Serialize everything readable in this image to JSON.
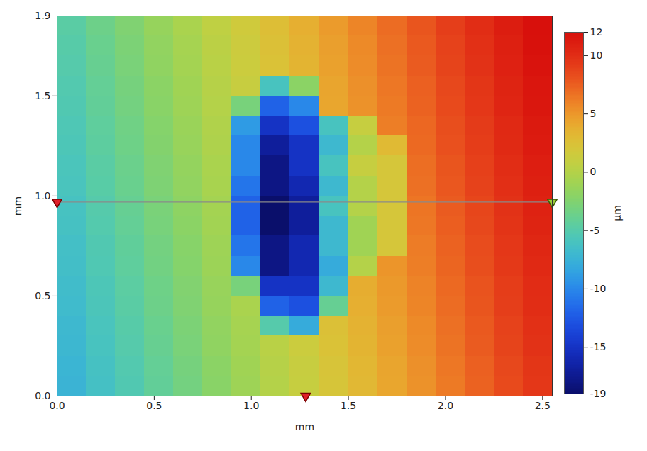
{
  "chart_data": {
    "type": "heatmap",
    "xlabel": "mm",
    "ylabel": "mm",
    "xlim": [
      0,
      2.55
    ],
    "ylim": [
      0,
      1.9
    ],
    "xticks": [
      {
        "value": 0,
        "label": "0.0"
      },
      0.5,
      {
        "value": 1,
        "label": "1.0"
      },
      1.5,
      {
        "value": 2,
        "label": "2.0"
      },
      2.5
    ],
    "yticks": [
      {
        "value": 0,
        "label": "0.0"
      },
      0.5,
      {
        "value": 1,
        "label": "1.0"
      },
      1.5,
      1.9
    ],
    "x_bins": [
      0,
      0.15,
      0.3,
      0.45,
      0.6,
      0.75,
      0.9,
      1.05,
      1.2,
      1.35,
      1.5,
      1.65,
      1.8,
      1.95,
      2.1,
      2.25,
      2.4,
      2.55
    ],
    "y_bins": [
      0,
      0.1,
      0.2,
      0.3,
      0.4,
      0.5,
      0.6,
      0.7,
      0.8,
      0.9,
      1.0,
      1.1,
      1.2,
      1.3,
      1.4,
      1.5,
      1.6,
      1.7,
      1.8,
      1.9
    ],
    "values": [
      [
        -7.4,
        -6.3,
        -5.3,
        -4.2,
        -3.2,
        -2.1,
        -1.1,
        0.0,
        1.0,
        2.1,
        3.1,
        4.2,
        5.2,
        6.3,
        7.3,
        8.4,
        9.4
      ],
      [
        -7.3,
        -6.2,
        -5.2,
        -4.1,
        -3.1,
        -2.0,
        -1.0,
        0.1,
        1.1,
        2.2,
        3.2,
        4.3,
        5.3,
        6.4,
        7.4,
        8.5,
        9.5
      ],
      [
        -7.1,
        -6.0,
        -5.0,
        -3.9,
        -2.9,
        -1.8,
        -0.8,
        0.3,
        1.3,
        2.4,
        3.4,
        4.5,
        5.5,
        6.6,
        7.6,
        8.7,
        9.7
      ],
      [
        -7.0,
        -5.9,
        -4.9,
        -3.8,
        -2.8,
        -1.7,
        -0.7,
        -5,
        -8,
        2.5,
        3.5,
        4.6,
        5.6,
        6.7,
        7.7,
        8.8,
        9.8
      ],
      [
        -6.8,
        -5.7,
        -4.7,
        -3.6,
        -2.6,
        -1.5,
        -0.5,
        -12,
        -13,
        -4,
        3.7,
        4.8,
        5.8,
        6.9,
        7.9,
        9.0,
        10.0
      ],
      [
        -6.7,
        -5.6,
        -4.6,
        -3.5,
        -2.5,
        -1.4,
        -3,
        -15,
        -15,
        -7,
        3.8,
        4.9,
        5.9,
        7.0,
        8.0,
        9.1,
        10.1
      ],
      [
        -6.5,
        -5.4,
        -4.4,
        -3.3,
        -2.3,
        -1.2,
        -10,
        -18,
        -16,
        -8,
        0,
        5.1,
        6.1,
        7.2,
        8.2,
        9.3,
        10.3
      ],
      [
        -6.4,
        -5.3,
        -4.3,
        -3.2,
        -2.2,
        -1.1,
        -11,
        -18,
        -16,
        -7,
        -1,
        2,
        6.2,
        7.3,
        8.3,
        9.4,
        10.4
      ],
      [
        -6.2,
        -5.1,
        -4.1,
        -3.0,
        -2.0,
        -0.9,
        -12,
        -19,
        -17,
        -7,
        -1,
        2,
        6.4,
        7.5,
        8.5,
        9.6,
        10.6
      ],
      [
        -6.1,
        -5.0,
        -4.0,
        -2.9,
        -1.9,
        -0.8,
        -12,
        -19,
        -17,
        -6,
        0,
        2,
        6.5,
        7.6,
        8.6,
        9.7,
        10.7
      ],
      [
        -5.9,
        -4.8,
        -3.8,
        -2.7,
        -1.7,
        -0.6,
        -11,
        -18,
        -16,
        -7,
        0,
        2,
        6.7,
        7.8,
        8.8,
        9.9,
        10.9
      ],
      [
        -5.8,
        -4.7,
        -3.7,
        -2.6,
        -1.6,
        -0.5,
        -10,
        -18,
        -15,
        -6,
        1,
        2,
        6.8,
        7.9,
        8.9,
        10.0,
        11.0
      ],
      [
        -5.6,
        -4.5,
        -3.5,
        -2.4,
        -1.4,
        -0.3,
        -10,
        -17,
        -15,
        -7,
        0,
        3,
        7.0,
        8.1,
        9.1,
        10.2,
        11.2
      ],
      [
        -5.5,
        -4.4,
        -3.4,
        -2.3,
        -1.3,
        -0.2,
        -9,
        -15,
        -13,
        -6,
        1,
        6.1,
        7.1,
        8.2,
        9.2,
        10.3,
        11.3
      ],
      [
        -5.3,
        -4.2,
        -3.2,
        -2.1,
        -1.1,
        0.0,
        -3,
        -12,
        -10,
        4.2,
        5.2,
        6.3,
        7.3,
        8.4,
        9.4,
        10.5,
        11.5
      ],
      [
        -5.2,
        -4.1,
        -3.1,
        -2.0,
        -1.0,
        0.1,
        1.1,
        -6,
        -2,
        4.3,
        5.3,
        6.4,
        7.4,
        8.5,
        9.5,
        10.6,
        11.6
      ],
      [
        -5.0,
        -3.9,
        -2.9,
        -1.8,
        -0.8,
        0.3,
        1.3,
        2.4,
        3.4,
        4.5,
        5.5,
        6.6,
        7.6,
        8.7,
        9.7,
        10.8,
        11.8
      ],
      [
        -4.9,
        -3.8,
        -2.8,
        -1.7,
        -0.7,
        0.4,
        1.4,
        2.5,
        3.5,
        4.6,
        5.6,
        6.7,
        7.7,
        8.8,
        9.8,
        10.9,
        11.9
      ],
      [
        -4.7,
        -3.6,
        -2.6,
        -1.5,
        -0.5,
        0.6,
        1.6,
        2.7,
        3.7,
        4.8,
        5.8,
        6.9,
        7.9,
        9.0,
        10.0,
        11.1,
        12.0
      ]
    ],
    "colorbar": {
      "label": "µm",
      "range": [
        -19,
        12
      ],
      "ticks": [
        12,
        10,
        5,
        0,
        -5,
        -10,
        -15,
        -19
      ]
    },
    "profile_line_y": 0.97,
    "profile_marker_x": 1.28
  }
}
